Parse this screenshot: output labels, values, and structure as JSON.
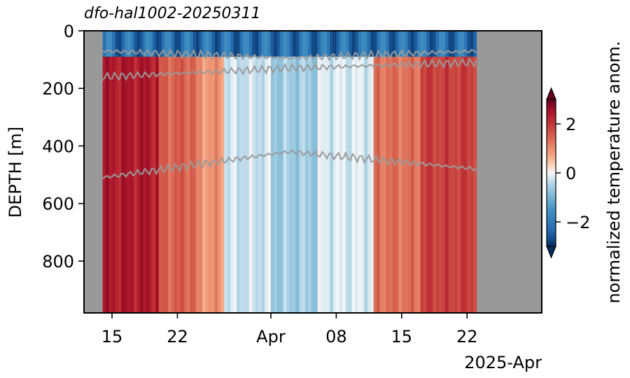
{
  "chart_data": {
    "type": "heatmap",
    "title": "dfo-hal1002-20250311",
    "ylabel": "DEPTH [m]",
    "xlabel": "",
    "x_offset_label": "2025-Apr",
    "y_ticks": [
      0,
      200,
      400,
      600,
      800
    ],
    "y_range": [
      0,
      980
    ],
    "y_inverted": true,
    "x_ticks": [
      {
        "label": "15",
        "date": "2025-03-15"
      },
      {
        "label": "22",
        "date": "2025-03-22"
      },
      {
        "label": "Apr",
        "date": "2025-04-01"
      },
      {
        "label": "08",
        "date": "2025-04-08"
      },
      {
        "label": "15",
        "date": "2025-04-15"
      },
      {
        "label": "22",
        "date": "2025-04-22"
      }
    ],
    "x_range": [
      "2025-03-12",
      "2025-04-30"
    ],
    "data_extent": [
      "2025-03-14",
      "2025-04-23"
    ],
    "profile_start_depth_m": 90,
    "bottom_depth_m": 980,
    "colorbar": {
      "label": "normalized temperature anom.",
      "colormap": "RdBu_r",
      "ticks": [
        -2,
        0,
        2
      ],
      "range": [
        -3,
        3
      ],
      "extend": "both"
    },
    "anomaly_by_period": [
      {
        "start": "2025-03-14",
        "end": "2025-03-20",
        "value": 2.4
      },
      {
        "start": "2025-03-20",
        "end": "2025-03-24",
        "value": 1.5
      },
      {
        "start": "2025-03-24",
        "end": "2025-03-27",
        "value": 0.9
      },
      {
        "start": "2025-03-27",
        "end": "2025-04-01",
        "value": -0.3
      },
      {
        "start": "2025-04-01",
        "end": "2025-04-06",
        "value": -0.6
      },
      {
        "start": "2025-04-06",
        "end": "2025-04-12",
        "value": -0.2
      },
      {
        "start": "2025-04-12",
        "end": "2025-04-17",
        "value": 1.3
      },
      {
        "start": "2025-04-17",
        "end": "2025-04-23",
        "value": 1.9
      }
    ],
    "near_surface_anomaly": -2.2,
    "isotherm_lines_m": [
      {
        "name": "upper-contour",
        "depth_start": 70,
        "depth_mid": 95,
        "depth_end": 70
      },
      {
        "name": "middle-contour",
        "depth_start": 160,
        "depth_mid": 130,
        "depth_end": 110
      },
      {
        "name": "deep-contour",
        "depth_start": 510,
        "depth_mid": 420,
        "depth_end": 480
      }
    ],
    "colors": {
      "nodata": "#999999",
      "contour": "#9a9a9a",
      "deep_red": "#67001f",
      "dark_blue": "#053061"
    }
  }
}
